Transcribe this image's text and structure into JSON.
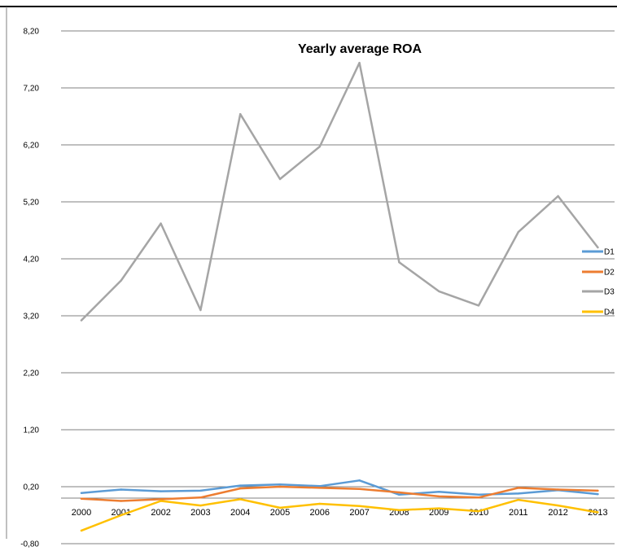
{
  "chart_data": {
    "type": "line",
    "title": "Yearly average ROA",
    "xlabel": "",
    "ylabel": "",
    "ylim": [
      -0.8,
      8.2
    ],
    "yticks": [
      "8,20",
      "7,20",
      "6,20",
      "5,20",
      "4,20",
      "3,20",
      "2,20",
      "1,20",
      "0,20",
      "-0,80"
    ],
    "ytick_values": [
      8.2,
      7.2,
      6.2,
      5.2,
      4.2,
      3.2,
      2.2,
      1.2,
      0.2,
      -0.8
    ],
    "categories": [
      "2000",
      "2001",
      "2002",
      "2003",
      "2004",
      "2005",
      "2006",
      "2007",
      "2008",
      "2009",
      "2010",
      "2011",
      "2012",
      "2013"
    ],
    "grid": true,
    "legend_position": "right",
    "series": [
      {
        "name": "D1",
        "color": "#5B9BD5",
        "values": [
          0.09,
          0.15,
          0.12,
          0.13,
          0.22,
          0.24,
          0.21,
          0.31,
          0.06,
          0.11,
          0.06,
          0.08,
          0.14,
          0.07
        ]
      },
      {
        "name": "D2",
        "color": "#ED7D31",
        "values": [
          -0.01,
          -0.05,
          -0.02,
          0.01,
          0.17,
          0.2,
          0.18,
          0.16,
          0.1,
          0.03,
          0.01,
          0.18,
          0.15,
          0.13
        ]
      },
      {
        "name": "D3",
        "color": "#A5A5A5",
        "values": [
          3.12,
          3.82,
          4.82,
          3.3,
          6.74,
          5.6,
          6.17,
          7.64,
          4.14,
          3.63,
          3.38,
          4.67,
          5.3,
          4.4
        ]
      },
      {
        "name": "D4",
        "color": "#FFC000",
        "values": [
          -0.57,
          -0.3,
          -0.05,
          -0.13,
          -0.02,
          -0.17,
          -0.1,
          -0.14,
          -0.21,
          -0.18,
          -0.23,
          -0.03,
          -0.13,
          -0.25
        ]
      }
    ]
  }
}
